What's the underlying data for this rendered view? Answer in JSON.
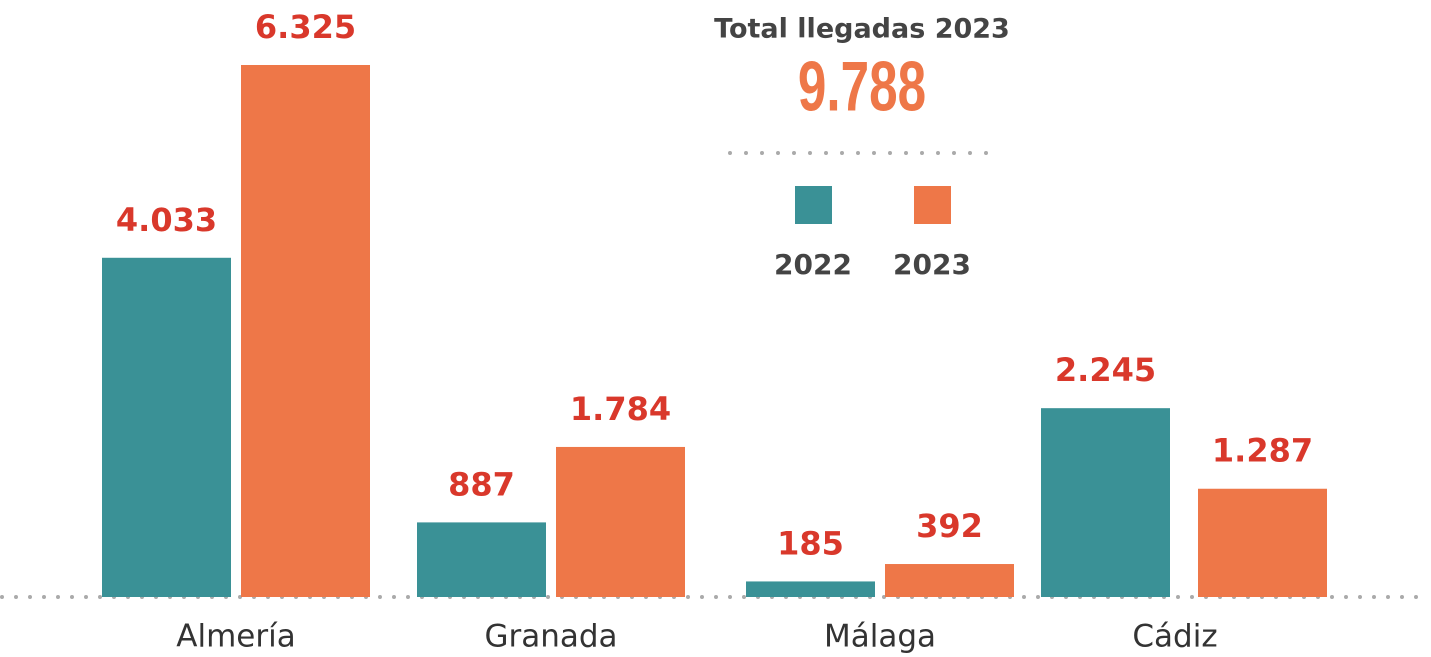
{
  "chart_data": {
    "type": "bar",
    "title": "Total llegadas 2023",
    "total": {
      "value": 9788,
      "label": "9.788"
    },
    "categories": [
      "Almería",
      "Granada",
      "Málaga",
      "Cádiz"
    ],
    "series": [
      {
        "name": "2022",
        "color": "#3a9196",
        "values": [
          4033,
          887,
          185,
          2245
        ],
        "value_labels": [
          "4.033",
          "887",
          "185",
          "2.245"
        ]
      },
      {
        "name": "2023",
        "color": "#ee7748",
        "values": [
          6325,
          1784,
          392,
          1287
        ],
        "value_labels": [
          "6.325",
          "1.784",
          "392",
          "1.287"
        ]
      }
    ]
  }
}
